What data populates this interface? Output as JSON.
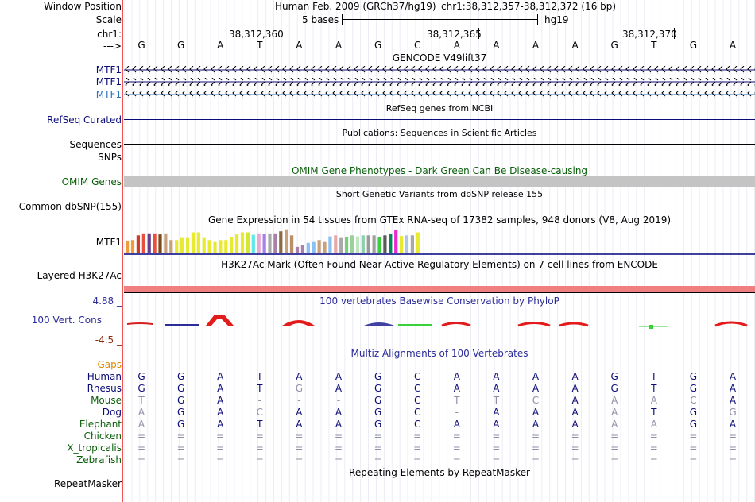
{
  "header": {
    "window_position_label": "Window Position",
    "scale_label": "Scale",
    "chr_label": "chr1:",
    "strand_label": "--->",
    "assembly": "Human Feb. 2009 (GRCh37/hg19)",
    "position": "chr1:38,312,357-38,312,372 (16 bp)",
    "scale_text": "5 bases",
    "scale_db": "hg19",
    "coords": [
      "38,312,360",
      "38,312,365",
      "38,312,370"
    ]
  },
  "sequence": [
    "G",
    "G",
    "A",
    "T",
    "A",
    "A",
    "G",
    "C",
    "A",
    "A",
    "A",
    "A",
    "G",
    "T",
    "G",
    "A"
  ],
  "tracks": {
    "gencode_title": "GENCODE V49lift37",
    "gencode_labels": [
      "MTF1",
      "MTF1",
      "MTF1"
    ],
    "refseq_title": "RefSeq genes from NCBI",
    "refseq_label": "RefSeq Curated",
    "pubs_title": "Publications: Sequences in Scientific Articles",
    "sequences_label": "Sequences",
    "snps_label": "SNPs",
    "omim_title": "OMIM Gene Phenotypes - Dark Green Can Be Disease-causing",
    "omim_label": "OMIM Genes",
    "dbsnp_title": "Short Genetic Variants from dbSNP release 155",
    "dbsnp_label": "Common dbSNP(155)",
    "gtex_title": "Gene Expression in 54 tissues from GTEx RNA-seq of 17382 samples, 948 donors (V8, Aug 2019)",
    "gtex_label": "MTF1",
    "h3k_title": "H3K27Ac Mark (Often Found Near Active Regulatory Elements) on 7 cell lines from ENCODE",
    "h3k_label": "Layered H3K27Ac",
    "cons_title": "100 vertebrates Basewise Conservation by PhyloP",
    "cons_label": "100 Vert. Cons",
    "cons_max": "4.88 _",
    "cons_min": "-4.5 _",
    "multiz_title": "Multiz Alignments of 100 Vertebrates",
    "gaps_label": "Gaps",
    "repeat_label": "RepeatMasker",
    "repeat_title": "Repeating Elements by RepeatMasker"
  },
  "gtex_values": [
    0.55,
    0.62,
    0.85,
    0.95,
    0.95,
    0.95,
    0.9,
    0.95,
    0.62,
    0.62,
    0.72,
    0.72,
    1.0,
    1.0,
    0.72,
    0.62,
    0.52,
    0.62,
    0.62,
    0.78,
    0.9,
    1.0,
    1.0,
    0.88,
    0.95,
    0.92,
    0.95,
    0.95,
    1.05,
    1.15,
    0.85,
    0.28,
    0.38,
    0.48,
    0.52,
    0.62,
    0.52,
    0.8,
    0.85,
    0.72,
    0.78,
    0.85,
    0.8,
    0.85,
    0.85,
    0.85,
    0.75,
    0.85,
    0.92,
    1.1,
    0.82,
    0.85,
    0.85,
    1.0
  ],
  "gtex_colors": [
    "#f29b3c",
    "#f29b3c",
    "#cc3c2a",
    "#ea4f3c",
    "#6a3d8c",
    "#ea4f3c",
    "#7a4a1a",
    "#c8a07a",
    "#c8a07a",
    "#e8ea32",
    "#e8ea32",
    "#e8ea32",
    "#e8ea32",
    "#e8ea32",
    "#e8ea32",
    "#e8ea32",
    "#e8ea32",
    "#e8ea32",
    "#e8ea32",
    "#e8ea32",
    "#e8ea32",
    "#e8ea32",
    "#d4e831",
    "#5fe8ea",
    "#e8a8d4",
    "#a880ea",
    "#a8a8a8",
    "#a880a8",
    "#8a6a40",
    "#c8a07a",
    "#b8906a",
    "#a880a8",
    "#a880a8",
    "#8ac0f2",
    "#8ac0f2",
    "#c8a07a",
    "#c8a07a",
    "#8ac0f2",
    "#e8a8a8",
    "#a8a8a8",
    "#7ad07a",
    "#9ad09a",
    "#c0e8c0",
    "#8ad0a8",
    "#9a9a9a",
    "#a0a0a0",
    "#3ad03a",
    "#5a5a5a",
    "#008a5a",
    "#e82ad0",
    "#e8ea32",
    "#a8c8e8",
    "#a8a8a8",
    "#e8ea32"
  ],
  "species": [
    {
      "name": "Human",
      "bases": [
        "G",
        "G",
        "A",
        "T",
        "A",
        "A",
        "G",
        "C",
        "A",
        "A",
        "A",
        "A",
        "G",
        "T",
        "G",
        "A"
      ]
    },
    {
      "name": "Rhesus",
      "bases": [
        "G",
        "G",
        "A",
        "T",
        "G",
        "A",
        "G",
        "C",
        "A",
        "A",
        "A",
        "A",
        "G",
        "T",
        "G",
        "A"
      ]
    },
    {
      "name": "Mouse",
      "bases": [
        "T",
        "G",
        "A",
        "-",
        "-",
        "-",
        "G",
        "C",
        "T",
        "T",
        "C",
        "A",
        "A",
        "A",
        "C",
        "A"
      ]
    },
    {
      "name": "Dog",
      "bases": [
        "A",
        "G",
        "A",
        "C",
        "A",
        "A",
        "G",
        "C",
        "-",
        "A",
        "A",
        "A",
        "A",
        "T",
        "G",
        "G"
      ]
    },
    {
      "name": "Elephant",
      "bases": [
        "A",
        "G",
        "A",
        "T",
        "A",
        "A",
        "G",
        "C",
        "A",
        "A",
        "A",
        "A",
        "A",
        "A",
        "G",
        "A"
      ]
    },
    {
      "name": "Chicken",
      "bases": [
        "=",
        "=",
        "=",
        "=",
        "=",
        "=",
        "=",
        "=",
        "=",
        "=",
        "=",
        "=",
        "=",
        "=",
        "=",
        "="
      ]
    },
    {
      "name": "X_tropicalis",
      "bases": [
        "=",
        "=",
        "=",
        "=",
        "=",
        "=",
        "=",
        "=",
        "=",
        "=",
        "=",
        "=",
        "=",
        "=",
        "=",
        "="
      ]
    },
    {
      "name": "Zebrafish",
      "bases": [
        "=",
        "=",
        "=",
        "=",
        "=",
        "=",
        "=",
        "=",
        "=",
        "=",
        "=",
        "=",
        "=",
        "=",
        "=",
        "="
      ]
    }
  ],
  "colors": {
    "navy": "#0c0c78",
    "green": "#0a5f0a",
    "separator": "#e55555",
    "h3k": "#f08080",
    "omim": "#c4c4c4",
    "gtex_border": "#000080"
  }
}
